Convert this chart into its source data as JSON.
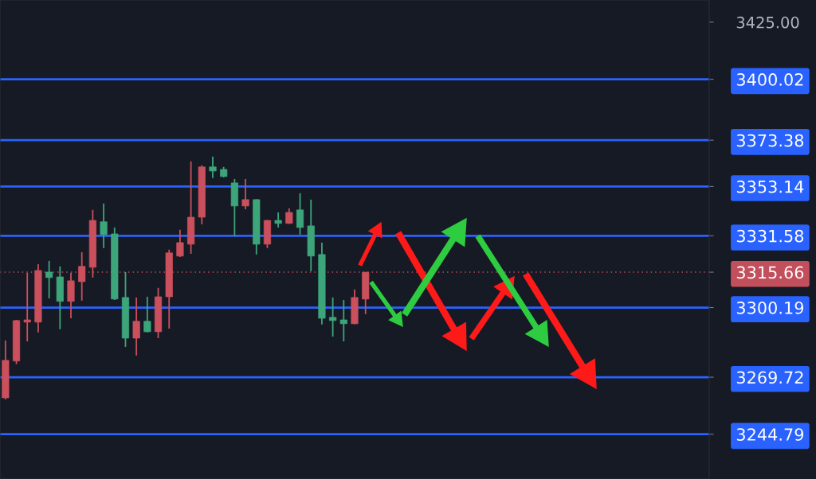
{
  "chart_data": {
    "type": "candlestick",
    "categories": [
      null,
      null,
      null,
      null,
      null,
      null,
      null,
      null,
      null,
      null,
      null,
      null,
      null,
      null,
      null,
      null,
      null,
      null,
      null,
      null,
      null,
      null,
      null,
      null,
      null,
      null,
      null,
      null,
      null,
      null,
      null,
      null,
      null,
      null,
      null,
      null,
      null,
      null,
      null,
      null,
      null,
      null,
      null,
      null,
      null,
      null,
      null,
      null,
      null,
      null,
      null,
      null,
      null,
      null,
      null,
      null,
      null,
      null,
      null,
      null,
      null,
      null,
      null,
      null,
      null
    ],
    "ohlc": [
      [
        3260.7,
        3285.8,
        3260.0,
        3277.1
      ],
      [
        3276.8,
        3294.8,
        3275.4,
        3294.5
      ],
      [
        3293.8,
        3315.4,
        3285.4,
        3294.8
      ],
      [
        3293.8,
        3319.2,
        3289.3,
        3316.4
      ],
      [
        3315.7,
        3320.6,
        3304.2,
        3313.3
      ],
      [
        3313.6,
        3318.2,
        3290.7,
        3302.9
      ],
      [
        3302.9,
        3315.4,
        3295.5,
        3311.9
      ],
      [
        3311.5,
        3324.4,
        3303.2,
        3318.2
      ],
      [
        3317.8,
        3342.9,
        3313.3,
        3338.3
      ],
      [
        3337.7,
        3345.7,
        3326.2,
        3332.1
      ],
      [
        3332.4,
        3335.2,
        3303.5,
        3303.9
      ],
      [
        3304.6,
        3315.7,
        3283.0,
        3286.8
      ],
      [
        3286.8,
        3304.6,
        3279.2,
        3294.2
      ],
      [
        3294.2,
        3304.9,
        3289.3,
        3289.6
      ],
      [
        3289.6,
        3308.8,
        3286.8,
        3304.9
      ],
      [
        3304.9,
        3325.5,
        3291.0,
        3324.1
      ],
      [
        3322.7,
        3334.2,
        3322.3,
        3328.6
      ],
      [
        3327.9,
        3364.1,
        3323.7,
        3339.7
      ],
      [
        3339.7,
        3362.4,
        3336.6,
        3361.7
      ],
      [
        3361.7,
        3366.2,
        3356.8,
        3359.9
      ],
      [
        3360.6,
        3361.7,
        3357.1,
        3357.5
      ],
      [
        3354.7,
        3356.4,
        3331.4,
        3344.6
      ],
      [
        3344.6,
        3356.4,
        3343.2,
        3347.4
      ],
      [
        3347.4,
        3347.6,
        3323.4,
        3327.9
      ],
      [
        3327.9,
        3338.5,
        3326.2,
        3338.3
      ],
      [
        3338.3,
        3341.8,
        3335.2,
        3337.0
      ],
      [
        3337.0,
        3343.6,
        3336.8,
        3341.8
      ],
      [
        3342.9,
        3350.2,
        3332.1,
        3335.2
      ],
      [
        3335.9,
        3347.4,
        3316.1,
        3322.7
      ],
      [
        3323.4,
        3328.6,
        3292.8,
        3295.5
      ],
      [
        3295.9,
        3304.6,
        3287.5,
        3294.5
      ],
      [
        3294.8,
        3303.5,
        3285.4,
        3293.1
      ],
      [
        3293.1,
        3308.1,
        3292.9,
        3304.6
      ],
      [
        3303.9,
        3315.66,
        3297.3,
        3315.66
      ],
      null,
      null,
      null,
      null,
      null,
      null,
      null,
      null,
      null,
      null,
      null,
      null,
      null,
      null,
      null,
      null,
      null,
      null,
      null,
      null,
      null,
      null,
      null,
      null,
      null,
      null,
      null,
      null,
      null,
      null,
      null
    ],
    "colors": [
      "#c9505c",
      "#c9505c",
      "#c9505c",
      "#c9505c",
      "#3da57a",
      "#3da57a",
      "#c9505c",
      "#c9505c",
      "#c9505c",
      "#3da57a",
      "#3da57a",
      "#3da57a",
      "#c9505c",
      "#3da57a",
      "#c9505c",
      "#c9505c",
      "#c9505c",
      "#c9505c",
      "#c9505c",
      "#3da57a",
      "#3da57a",
      "#3da57a",
      "#c9505c",
      "#3da57a",
      "#c9505c",
      "#3da57a",
      "#c9505c",
      "#3da57a",
      "#3da57a",
      "#3da57a",
      "#3da57a",
      "#3da57a",
      "#c9505c",
      "#c9505c",
      null,
      null,
      null,
      null,
      null,
      null,
      null,
      null,
      null,
      null,
      null,
      null,
      null,
      null,
      null,
      null,
      null,
      null,
      null,
      null,
      null,
      null,
      null,
      null,
      null,
      null,
      null,
      null,
      null,
      null,
      null
    ],
    "ylim": [
      3225.2,
      3434.7
    ],
    "yticks": [
      {
        "value": 3244.79,
        "label": "3244.79"
      },
      {
        "value": 3269.72,
        "label": "3269.72"
      },
      {
        "value": 3300.19,
        "label": "3300.19"
      },
      {
        "value": 3315.66,
        "label": "3315.66"
      },
      {
        "value": 3331.58,
        "label": "3331.58"
      },
      {
        "value": 3353.14,
        "label": "3353.14"
      },
      {
        "value": 3373.38,
        "label": "3373.38"
      },
      {
        "value": 3400.02,
        "label": "3400.02"
      },
      {
        "value": 3425,
        "label": "3425.00"
      }
    ],
    "tick_labels": "y",
    "grid": false,
    "ref_lines": [
      {
        "axis": "y",
        "value": 3400.02,
        "color": "#2962ff"
      },
      {
        "axis": "y",
        "value": 3373.38,
        "color": "#2962ff"
      },
      {
        "axis": "y",
        "value": 3353.14,
        "color": "#2962ff"
      },
      {
        "axis": "y",
        "value": 3331.58,
        "color": "#2962ff"
      },
      {
        "axis": "y",
        "value": 3315.66,
        "color": "#c24f5c",
        "line_style": "dotted"
      },
      {
        "axis": "y",
        "value": 3300.19,
        "color": "#2962ff"
      },
      {
        "axis": "y",
        "value": 3269.72,
        "color": "#2962ff"
      },
      {
        "axis": "y",
        "value": 3244.79,
        "color": "#2962ff"
      }
    ]
  }
}
